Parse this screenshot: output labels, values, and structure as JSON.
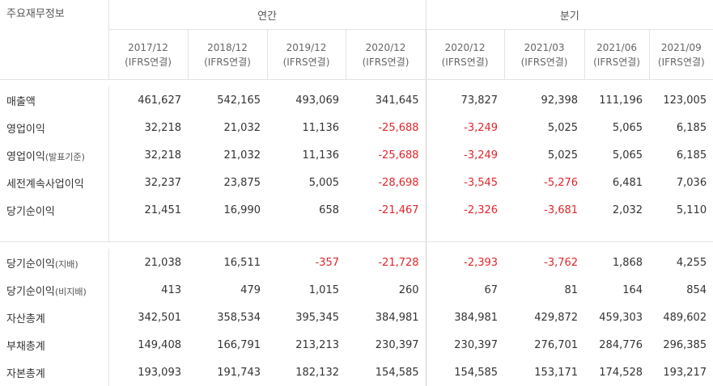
{
  "corner_label": "주요재무정보",
  "groups": {
    "annual": "연간",
    "quarterly": "분기"
  },
  "periods": [
    {
      "date": "2017/12",
      "basis": "(IFRS연결)"
    },
    {
      "date": "2018/12",
      "basis": "(IFRS연결)"
    },
    {
      "date": "2019/12",
      "basis": "(IFRS연결)"
    },
    {
      "date": "2020/12",
      "basis": "(IFRS연결)"
    },
    {
      "date": "2020/12",
      "basis": "(IFRS연결)"
    },
    {
      "date": "2021/03",
      "basis": "(IFRS연결)"
    },
    {
      "date": "2021/06",
      "basis": "(IFRS연결)"
    },
    {
      "date": "2021/09",
      "basis": "(IFRS연결)"
    }
  ],
  "colors": {
    "negative": "#e0252b",
    "text": "#333333",
    "border": "#e3e3e3"
  },
  "rows_top": [
    {
      "label": "매출액",
      "sub": "",
      "values": [
        "461,627",
        "542,165",
        "493,069",
        "341,645",
        "73,827",
        "92,398",
        "111,196",
        "123,005"
      ]
    },
    {
      "label": "영업이익",
      "sub": "",
      "values": [
        "32,218",
        "21,032",
        "11,136",
        "-25,688",
        "-3,249",
        "5,025",
        "5,065",
        "6,185"
      ]
    },
    {
      "label": "영업이익",
      "sub": "(발표기준)",
      "values": [
        "32,218",
        "21,032",
        "11,136",
        "-25,688",
        "-3,249",
        "5,025",
        "5,065",
        "6,185"
      ]
    },
    {
      "label": "세전계속사업이익",
      "sub": "",
      "values": [
        "32,237",
        "23,875",
        "5,005",
        "-28,698",
        "-3,545",
        "-5,276",
        "6,481",
        "7,036"
      ]
    },
    {
      "label": "당기순이익",
      "sub": "",
      "values": [
        "21,451",
        "16,990",
        "658",
        "-21,467",
        "-2,326",
        "-3,681",
        "2,032",
        "5,110"
      ]
    }
  ],
  "rows_bottom": [
    {
      "label": "당기순이익",
      "sub": "(지배)",
      "values": [
        "21,038",
        "16,511",
        "-357",
        "-21,728",
        "-2,393",
        "-3,762",
        "1,868",
        "4,255"
      ]
    },
    {
      "label": "당기순이익",
      "sub": "(비지배)",
      "values": [
        "413",
        "479",
        "1,015",
        "260",
        "67",
        "81",
        "164",
        "854"
      ]
    },
    {
      "label": "자산총계",
      "sub": "",
      "values": [
        "342,501",
        "358,534",
        "395,345",
        "384,981",
        "384,981",
        "429,872",
        "459,303",
        "489,602"
      ]
    },
    {
      "label": "부채총계",
      "sub": "",
      "values": [
        "149,408",
        "166,791",
        "213,213",
        "230,397",
        "230,397",
        "276,701",
        "284,776",
        "296,385"
      ]
    },
    {
      "label": "자본총계",
      "sub": "",
      "values": [
        "193,093",
        "191,743",
        "182,132",
        "154,585",
        "154,585",
        "153,171",
        "174,528",
        "193,217"
      ]
    }
  ]
}
